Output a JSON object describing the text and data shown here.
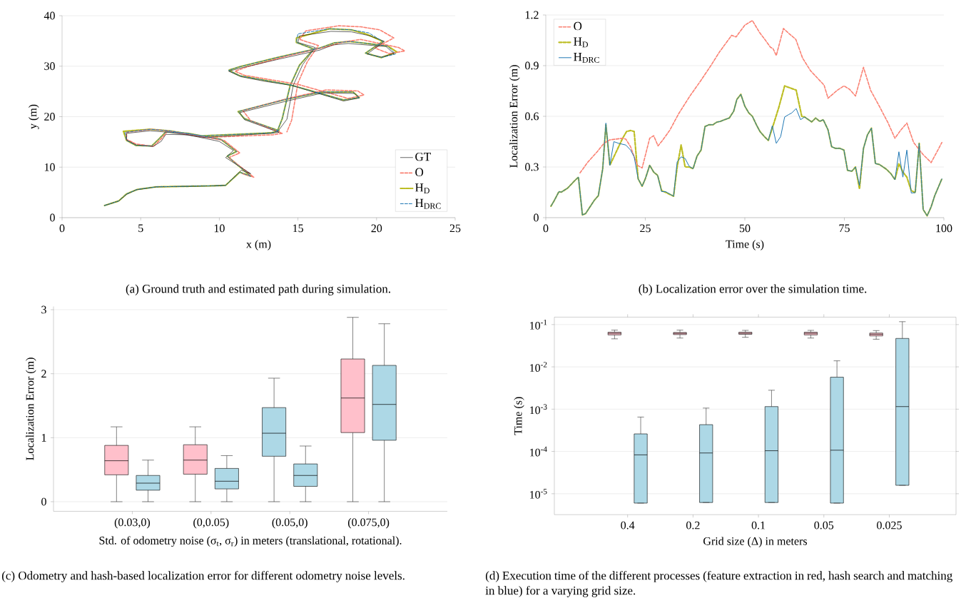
{
  "chart_data": [
    {
      "type": "line",
      "xlabel": "x (m)",
      "ylabel": "y (m)",
      "xlim": [
        0,
        25
      ],
      "ylim": [
        0,
        40
      ],
      "xticks": [
        0,
        5,
        10,
        15,
        20,
        25
      ],
      "yticks": [
        0,
        10,
        20,
        30,
        40
      ],
      "grid": "y",
      "legend": "bottom right",
      "annotations": [
        "(a) Ground truth and estimated path during simulation."
      ],
      "series": [
        {
          "name": "GT",
          "color": "#000000",
          "line_style": "solid",
          "x": [
            2.7,
            3.6,
            4.1,
            4.7,
            6.0,
            9.6,
            10.4,
            11.4,
            12.0,
            10.4,
            10.9,
            10.0,
            8.0,
            6.6,
            6.3,
            5.8,
            4.7,
            4.1,
            4.1,
            5.6,
            6.8,
            9.0,
            13.3,
            13.8,
            11.6,
            11.3,
            14.3,
            16.6,
            18.6,
            18.9,
            17.9,
            14.6,
            12.9,
            11.4,
            10.6,
            11.3,
            13.8,
            16.4,
            17.2,
            18.2,
            20.6,
            21.1,
            20.3,
            19.4,
            20.5,
            19.6,
            18.4,
            17.1,
            15.1,
            15.0,
            16.1,
            15.3,
            14.7,
            14.3,
            13.8
          ],
          "values": [
            2.4,
            3.3,
            4.6,
            5.5,
            6.1,
            6.3,
            6.4,
            9.4,
            8.7,
            11.9,
            13.3,
            15.1,
            16.4,
            16.5,
            15.1,
            14.1,
            14.4,
            15.4,
            16.7,
            17.2,
            16.9,
            15.9,
            16.7,
            16.9,
            19.4,
            20.8,
            23.1,
            24.7,
            24.6,
            23.7,
            23.1,
            26.2,
            27.0,
            27.9,
            29.0,
            29.6,
            31.4,
            33.2,
            34.2,
            34.5,
            33.9,
            32.5,
            31.8,
            32.4,
            34.9,
            36.0,
            36.8,
            36.9,
            36.0,
            34.7,
            33.7,
            30.3,
            26.2,
            19.5,
            17.4
          ]
        },
        {
          "name": "O",
          "color": "#fa8072",
          "line_style": "dashed",
          "x": [
            11.5,
            12.2,
            10.6,
            11.3,
            10.3,
            8.2,
            6.7,
            6.3,
            5.8,
            4.7,
            4.1,
            4.1,
            5.7,
            7.0,
            9.2,
            13.4,
            14.0,
            12.0,
            11.5,
            14.6,
            16.8,
            18.8,
            19.2,
            18.2,
            15.0,
            13.3,
            11.6,
            11.0,
            11.8,
            14.3,
            16.9,
            17.9,
            19.0,
            21.4,
            21.8,
            20.8,
            19.9,
            21.1,
            20.2,
            19.0,
            17.6,
            15.5,
            15.1,
            16.3,
            15.6,
            15.0,
            14.6,
            14.3
          ],
          "values": [
            8.7,
            8.0,
            11.9,
            12.8,
            15.3,
            16.4,
            17.1,
            15.6,
            14.1,
            14.6,
            15.5,
            16.9,
            17.5,
            17.1,
            15.9,
            16.4,
            16.7,
            19.2,
            21.2,
            23.8,
            25.3,
            25.1,
            24.3,
            23.6,
            26.4,
            27.3,
            28.2,
            29.0,
            29.9,
            32.0,
            33.9,
            34.8,
            35.3,
            33.7,
            33.0,
            32.5,
            33.6,
            35.6,
            37.2,
            37.8,
            38.0,
            37.0,
            35.3,
            34.1,
            30.9,
            26.7,
            19.3,
            17.0
          ]
        },
        {
          "name": "H$_{D}$",
          "color": "#bcbd22",
          "line_style": "dashdot",
          "x": [
            2.7,
            3.6,
            4.1,
            4.8,
            6.0,
            9.6,
            10.4,
            11.3,
            12.0,
            10.5,
            11.1,
            10.1,
            8.0,
            6.6,
            6.1,
            5.7,
            4.7,
            4.1,
            3.9,
            5.6,
            6.8,
            8.9,
            13.3,
            13.8,
            11.6,
            11.2,
            14.2,
            16.5,
            18.5,
            18.9,
            17.9,
            14.5,
            12.9,
            11.3,
            10.6,
            11.3,
            13.8,
            16.4,
            17.3,
            18.3,
            20.7,
            21.3,
            20.3,
            19.3,
            20.4,
            19.4,
            18.4,
            17.0,
            14.9,
            14.9,
            16.0,
            15.1,
            14.5,
            14.0,
            13.7
          ],
          "values": [
            2.4,
            3.3,
            4.7,
            5.6,
            6.1,
            6.3,
            6.4,
            9.0,
            8.2,
            12.2,
            13.1,
            15.5,
            16.7,
            17.0,
            15.4,
            14.2,
            14.3,
            15.3,
            17.1,
            17.5,
            17.2,
            16.2,
            16.8,
            17.2,
            19.6,
            21.0,
            23.4,
            24.9,
            24.9,
            23.8,
            23.3,
            26.3,
            27.2,
            28.1,
            29.2,
            29.9,
            31.8,
            33.6,
            34.6,
            34.9,
            34.0,
            32.8,
            31.7,
            32.6,
            34.9,
            36.3,
            37.2,
            37.4,
            35.6,
            34.7,
            33.4,
            30.2,
            26.1,
            19.6,
            17.2
          ]
        },
        {
          "name": "H$_{DRC}$",
          "color": "#1f77b4",
          "line_style": "dashed",
          "x": [
            2.7,
            3.6,
            4.1,
            4.8,
            6.0,
            9.6,
            10.4,
            11.3,
            12.0,
            10.5,
            11.1,
            10.1,
            8.0,
            6.6,
            6.1,
            5.7,
            4.7,
            4.1,
            4.0,
            5.6,
            6.8,
            8.9,
            13.3,
            13.8,
            11.6,
            11.2,
            14.2,
            16.5,
            18.5,
            18.9,
            17.9,
            14.5,
            12.9,
            11.3,
            10.6,
            11.3,
            13.8,
            16.4,
            17.3,
            18.3,
            20.7,
            21.2,
            20.3,
            19.3,
            20.4,
            19.5,
            18.4,
            17.0,
            15.0,
            14.9,
            16.0,
            15.1,
            14.5,
            14.0,
            13.7
          ],
          "values": [
            2.4,
            3.3,
            4.7,
            5.6,
            6.1,
            6.3,
            6.4,
            9.0,
            8.2,
            12.2,
            13.1,
            15.5,
            16.7,
            17.0,
            15.4,
            14.2,
            14.3,
            15.3,
            16.9,
            17.5,
            17.2,
            16.2,
            16.8,
            17.2,
            19.6,
            21.0,
            23.4,
            24.9,
            24.9,
            23.8,
            23.3,
            26.3,
            27.2,
            28.1,
            29.2,
            29.9,
            31.8,
            33.6,
            34.6,
            34.9,
            34.0,
            32.4,
            31.7,
            32.6,
            34.9,
            36.6,
            37.2,
            37.4,
            36.4,
            34.7,
            33.4,
            30.2,
            26.1,
            19.6,
            17.2
          ]
        }
      ]
    },
    {
      "type": "line",
      "xlabel": "Time (s)",
      "ylabel": "Localization Error (m)",
      "xlim": [
        0,
        100
      ],
      "ylim": [
        0,
        1.2
      ],
      "xticks": [
        0,
        25,
        50,
        75,
        100
      ],
      "yticks": [
        0,
        0.3,
        0.6,
        0.9,
        1.2
      ],
      "grid": "y",
      "legend": "top left",
      "annotations": [
        "(b) Localization error over the simulation time."
      ],
      "series": [
        {
          "name": "O",
          "color": "#fa8072",
          "line_style": "dashed",
          "x": [
            8.6,
            10.6,
            12.9,
            14.6,
            16.0,
            19.3,
            20.1,
            21.3,
            23.0,
            24.2,
            26.1,
            27.1,
            28.2,
            29.4,
            31.1,
            33.5,
            36.2,
            38.9,
            41.6,
            43.6,
            46.7,
            47.8,
            50.0,
            51.9,
            53.7,
            55.0,
            56.4,
            57.1,
            57.9,
            59.7,
            61.1,
            62.8,
            64.5,
            66.5,
            68.5,
            69.9,
            70.9,
            73.2,
            74.9,
            76.3,
            77.8,
            79.8,
            81.6,
            84.0,
            86.0,
            87.7,
            89.1,
            90.7,
            92.4,
            94.8,
            96.8,
            99.5
          ],
          "values": [
            0.265,
            0.33,
            0.39,
            0.44,
            0.46,
            0.47,
            0.465,
            0.42,
            0.31,
            0.294,
            0.47,
            0.485,
            0.425,
            0.46,
            0.516,
            0.62,
            0.72,
            0.81,
            0.905,
            0.98,
            1.08,
            1.07,
            1.14,
            1.167,
            1.096,
            1.056,
            1.01,
            1.0,
            0.96,
            1.12,
            1.09,
            1.056,
            0.945,
            0.87,
            0.82,
            0.785,
            0.707,
            0.754,
            0.78,
            0.76,
            0.72,
            0.89,
            0.754,
            0.65,
            0.56,
            0.47,
            0.516,
            0.56,
            0.445,
            0.373,
            0.326,
            0.445
          ]
        },
        {
          "name": "H$_{D}$",
          "color": "#bcbd22",
          "line_style": "dashed",
          "x": [
            1.3,
            2.1,
            3.3,
            3.9,
            5.5,
            6.5,
            7.3,
            8.2,
            9.2,
            10.0,
            12.2,
            13.2,
            14.3,
            15.1,
            16.1,
            17.1,
            18.3,
            19.3,
            20.3,
            21.3,
            22.2,
            23.2,
            24.2,
            25.0,
            26.1,
            27.1,
            28.1,
            29.1,
            30.1,
            32.1,
            33.0,
            34.0,
            35.0,
            36.0,
            37.0,
            38.0,
            39.0,
            40.0,
            41.0,
            42.0,
            42.9,
            43.9,
            44.9,
            46.1,
            47.2,
            48.0,
            49.0,
            50.0,
            51.0,
            51.9,
            52.9,
            53.8,
            54.9,
            55.9,
            56.9,
            58.5,
            60.0,
            62.9,
            64.3,
            65.0,
            66.8,
            67.8,
            68.8,
            69.7,
            70.9,
            71.8,
            72.8,
            73.9,
            74.9,
            75.8,
            76.9,
            77.8,
            78.8,
            79.8,
            80.8,
            81.8,
            82.8,
            83.8,
            85.6,
            86.7,
            87.7,
            88.7,
            89.7,
            90.7,
            91.8,
            92.8,
            93.8,
            94.8,
            95.8,
            96.8,
            97.7,
            99.5
          ],
          "values": [
            0.068,
            0.1,
            0.154,
            0.151,
            0.175,
            0.2,
            0.22,
            0.24,
            0.016,
            0.024,
            0.103,
            0.13,
            0.29,
            0.55,
            0.31,
            0.36,
            0.42,
            0.47,
            0.51,
            0.516,
            0.51,
            0.23,
            0.186,
            0.23,
            0.31,
            0.27,
            0.25,
            0.16,
            0.15,
            0.127,
            0.3,
            0.43,
            0.3,
            0.3,
            0.29,
            0.365,
            0.4,
            0.54,
            0.55,
            0.55,
            0.565,
            0.57,
            0.58,
            0.59,
            0.63,
            0.7,
            0.73,
            0.66,
            0.62,
            0.6,
            0.55,
            0.51,
            0.48,
            0.457,
            0.53,
            0.65,
            0.78,
            0.755,
            0.6,
            0.596,
            0.567,
            0.59,
            0.57,
            0.58,
            0.52,
            0.42,
            0.41,
            0.41,
            0.4,
            0.28,
            0.275,
            0.3,
            0.17,
            0.41,
            0.49,
            0.53,
            0.32,
            0.315,
            0.286,
            0.26,
            0.225,
            0.32,
            0.27,
            0.24,
            0.16,
            0.148,
            0.44,
            0.048,
            0.011,
            0.064,
            0.13,
            0.23
          ]
        },
        {
          "name": "H$_{DRC}$",
          "color": "#1f77b4",
          "line_style": "solid",
          "x": [
            1.3,
            2.1,
            3.3,
            3.9,
            5.5,
            6.5,
            7.3,
            8.2,
            9.2,
            10.0,
            12.2,
            13.2,
            14.3,
            15.1,
            16.1,
            17.1,
            18.3,
            20.1,
            21.3,
            22.2,
            23.2,
            24.2,
            25.0,
            26.1,
            27.1,
            28.1,
            29.1,
            30.1,
            32.1,
            33.0,
            34.0,
            35.0,
            36.0,
            37.0,
            38.0,
            39.0,
            40.0,
            41.0,
            42.0,
            42.9,
            43.9,
            44.9,
            46.1,
            47.2,
            48.0,
            49.0,
            50.0,
            51.0,
            51.9,
            52.9,
            53.8,
            54.9,
            55.9,
            56.9,
            57.9,
            59.0,
            60.0,
            61.0,
            61.8,
            62.9,
            64.0,
            65.0,
            66.8,
            67.8,
            68.8,
            69.7,
            70.9,
            71.8,
            72.8,
            73.9,
            74.9,
            75.8,
            76.9,
            77.8,
            78.8,
            79.8,
            80.8,
            81.8,
            82.8,
            83.8,
            85.6,
            86.7,
            87.7,
            88.7,
            89.7,
            90.7,
            91.8,
            92.8,
            93.8,
            94.8,
            95.8,
            96.8,
            97.7,
            99.5
          ],
          "values": [
            0.068,
            0.1,
            0.154,
            0.151,
            0.175,
            0.2,
            0.22,
            0.24,
            0.016,
            0.024,
            0.103,
            0.13,
            0.29,
            0.56,
            0.31,
            0.45,
            0.44,
            0.43,
            0.4,
            0.36,
            0.23,
            0.186,
            0.23,
            0.31,
            0.27,
            0.25,
            0.154,
            0.154,
            0.127,
            0.33,
            0.36,
            0.35,
            0.305,
            0.29,
            0.365,
            0.4,
            0.54,
            0.55,
            0.55,
            0.565,
            0.57,
            0.58,
            0.59,
            0.63,
            0.7,
            0.73,
            0.66,
            0.62,
            0.6,
            0.55,
            0.51,
            0.48,
            0.457,
            0.545,
            0.44,
            0.48,
            0.596,
            0.61,
            0.62,
            0.646,
            0.58,
            0.596,
            0.567,
            0.59,
            0.57,
            0.58,
            0.52,
            0.42,
            0.41,
            0.41,
            0.4,
            0.28,
            0.275,
            0.3,
            0.19,
            0.41,
            0.49,
            0.53,
            0.32,
            0.315,
            0.286,
            0.26,
            0.225,
            0.39,
            0.24,
            0.4,
            0.146,
            0.148,
            0.44,
            0.048,
            0.011,
            0.064,
            0.13,
            0.23
          ]
        }
      ]
    },
    {
      "type": "box",
      "xlabel": "Std. of odometry noise (σ$_{t}$, σ$_{r}$) in meters (translational, rotational).",
      "ylabel": "Localization Error (m)",
      "ylim": [
        -0.15,
        3.05
      ],
      "yticks": [
        0,
        1,
        2,
        3
      ],
      "grid": "y",
      "categories": [
        "(0.03,0)",
        "(0,0.05)",
        "(0.05,0)",
        "(0.075,0)"
      ],
      "annotations": [
        "(c) Odometry and hash-based localization error for different odometry noise levels."
      ],
      "series": [
        {
          "colors": [
            "#ffc0cb",
            "#ffc0cb",
            "#add8e6",
            "#ffc0cb"
          ],
          "boxes": [
            {
              "low": 0,
              "q1": 0.42,
              "median": 0.64,
              "q3": 0.88,
              "high": 1.17
            },
            {
              "low": 0,
              "q1": 0.43,
              "median": 0.65,
              "q3": 0.89,
              "high": 1.17
            },
            {
              "low": 0,
              "q1": 0.71,
              "median": 1.07,
              "q3": 1.47,
              "high": 1.93
            },
            {
              "low": 0,
              "q1": 1.08,
              "median": 1.62,
              "q3": 2.23,
              "high": 2.88
            }
          ]
        },
        {
          "colors": [
            "#add8e6",
            "#add8e6",
            "#add8e6",
            "#add8e6"
          ],
          "boxes": [
            {
              "low": 0,
              "q1": 0.18,
              "median": 0.29,
              "q3": 0.41,
              "high": 0.65
            },
            {
              "low": 0,
              "q1": 0.2,
              "median": 0.32,
              "q3": 0.52,
              "high": 0.72
            },
            {
              "low": 0,
              "q1": 0.24,
              "median": 0.41,
              "q3": 0.59,
              "high": 0.87
            },
            {
              "low": 0,
              "q1": 0.96,
              "median": 1.52,
              "q3": 2.13,
              "high": 2.78
            }
          ]
        }
      ]
    },
    {
      "type": "box",
      "xlabel": "Grid size (Δ) in meters",
      "ylabel": "Time (s)",
      "log": true,
      "ylim": [
        3.2e-06,
        0.15
      ],
      "yticks": [
        {
          "value": 0.1,
          "label": "10$^{-1}$"
        },
        {
          "value": 0.01,
          "label": "10$^{-2}$"
        },
        {
          "value": 0.001,
          "label": "10$^{-3}$"
        },
        {
          "value": 0.0001,
          "label": "10$^{-4}$"
        },
        {
          "value": 1e-05,
          "label": "10$^{-5}$"
        }
      ],
      "grid": "y",
      "categories": [
        "0.4",
        "0.2",
        "0.1",
        "0.05",
        "0.025"
      ],
      "annotations": [
        "(d) Execution time of the different processes (feature extraction in red, hash search and matching in blue) for a varying grid size."
      ],
      "series": [
        {
          "colors": [
            "#ffc0cb",
            "#ffc0cb",
            "#ffc0cb",
            "#ffc0cb",
            "#ffc0cb"
          ],
          "boxes": [
            {
              "low": 0.046,
              "q1": 0.057,
              "median": 0.062,
              "q3": 0.066,
              "high": 0.074
            },
            {
              "low": 0.048,
              "q1": 0.058,
              "median": 0.062,
              "q3": 0.065,
              "high": 0.074
            },
            {
              "low": 0.05,
              "q1": 0.059,
              "median": 0.062,
              "q3": 0.066,
              "high": 0.073
            },
            {
              "low": 0.048,
              "q1": 0.057,
              "median": 0.062,
              "q3": 0.066,
              "high": 0.073
            },
            {
              "low": 0.045,
              "q1": 0.054,
              "median": 0.059,
              "q3": 0.063,
              "high": 0.072
            }
          ]
        },
        {
          "colors": [
            "#add8e6",
            "#add8e6",
            "#add8e6",
            "#add8e6",
            "#add8e6"
          ],
          "boxes": [
            {
              "low": 6e-06,
              "q1": 6e-06,
              "median": 8.3e-05,
              "q3": 0.00026,
              "high": 0.00065
            },
            {
              "low": 6.2e-06,
              "q1": 6.2e-06,
              "median": 9.2e-05,
              "q3": 0.00043,
              "high": 0.00106
            },
            {
              "low": 6.2e-06,
              "q1": 6.2e-06,
              "median": 0.000104,
              "q3": 0.00115,
              "high": 0.0028
            },
            {
              "low": 6e-06,
              "q1": 6e-06,
              "median": 0.000107,
              "q3": 0.0057,
              "high": 0.0139
            },
            {
              "low": 1.58e-05,
              "q1": 1.58e-05,
              "median": 0.00115,
              "q3": 0.047,
              "high": 0.117
            }
          ]
        }
      ]
    }
  ]
}
